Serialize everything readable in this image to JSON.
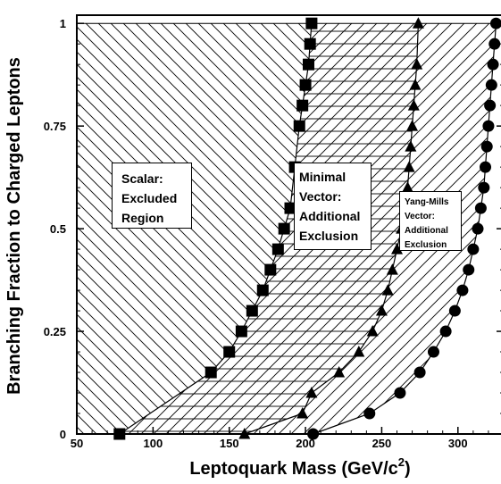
{
  "chart_data": {
    "type": "scatter",
    "xlabel": "Leptoquark Mass (GeV/c",
    "xlabel_sup": "2",
    "xlabel_close": ")",
    "ylabel": "Branching Fraction to Charged Leptons",
    "xlim": [
      50,
      330
    ],
    "ylim": [
      0,
      1.02
    ],
    "x_ticks": [
      50,
      100,
      150,
      200,
      250,
      300
    ],
    "y_ticks": [
      0,
      0.25,
      0.5,
      0.75,
      1
    ],
    "y_tick_labels": [
      "0",
      "0.25",
      "0.5",
      "0.75",
      "1"
    ],
    "annotations": {
      "scalar": [
        "Scalar:",
        "Excluded",
        "Region"
      ],
      "minimal": [
        "Minimal",
        "Vector:",
        "Additional",
        "Exclusion"
      ],
      "yang_mills": [
        "Yang-Mills",
        "Vector:",
        "Additional",
        "Exclusion"
      ]
    },
    "series": [
      {
        "marker": "square",
        "x": [
          78,
          138,
          150,
          158,
          165,
          172,
          177,
          182,
          186,
          190,
          193,
          196,
          198,
          200,
          202,
          203,
          204
        ],
        "y": [
          0,
          0.15,
          0.2,
          0.25,
          0.3,
          0.35,
          0.4,
          0.45,
          0.5,
          0.55,
          0.65,
          0.75,
          0.8,
          0.85,
          0.9,
          0.95,
          1.0
        ]
      },
      {
        "marker": "triangle",
        "x": [
          160,
          198,
          204,
          222,
          235,
          244,
          250,
          254,
          257,
          260,
          263,
          265,
          267,
          268,
          269,
          270,
          271,
          272,
          273,
          274
        ],
        "y": [
          0,
          0.05,
          0.1,
          0.15,
          0.2,
          0.25,
          0.3,
          0.35,
          0.4,
          0.45,
          0.5,
          0.55,
          0.6,
          0.65,
          0.7,
          0.75,
          0.8,
          0.85,
          0.9,
          1.0
        ]
      },
      {
        "marker": "circle",
        "x": [
          205,
          242,
          262,
          275,
          284,
          292,
          298,
          303,
          307,
          310,
          313,
          315,
          317,
          318,
          319,
          320,
          321,
          322,
          323,
          324,
          325
        ],
        "y": [
          0,
          0.05,
          0.1,
          0.15,
          0.2,
          0.25,
          0.3,
          0.35,
          0.4,
          0.45,
          0.5,
          0.55,
          0.6,
          0.65,
          0.7,
          0.75,
          0.8,
          0.85,
          0.9,
          0.95,
          1.0
        ]
      }
    ]
  }
}
